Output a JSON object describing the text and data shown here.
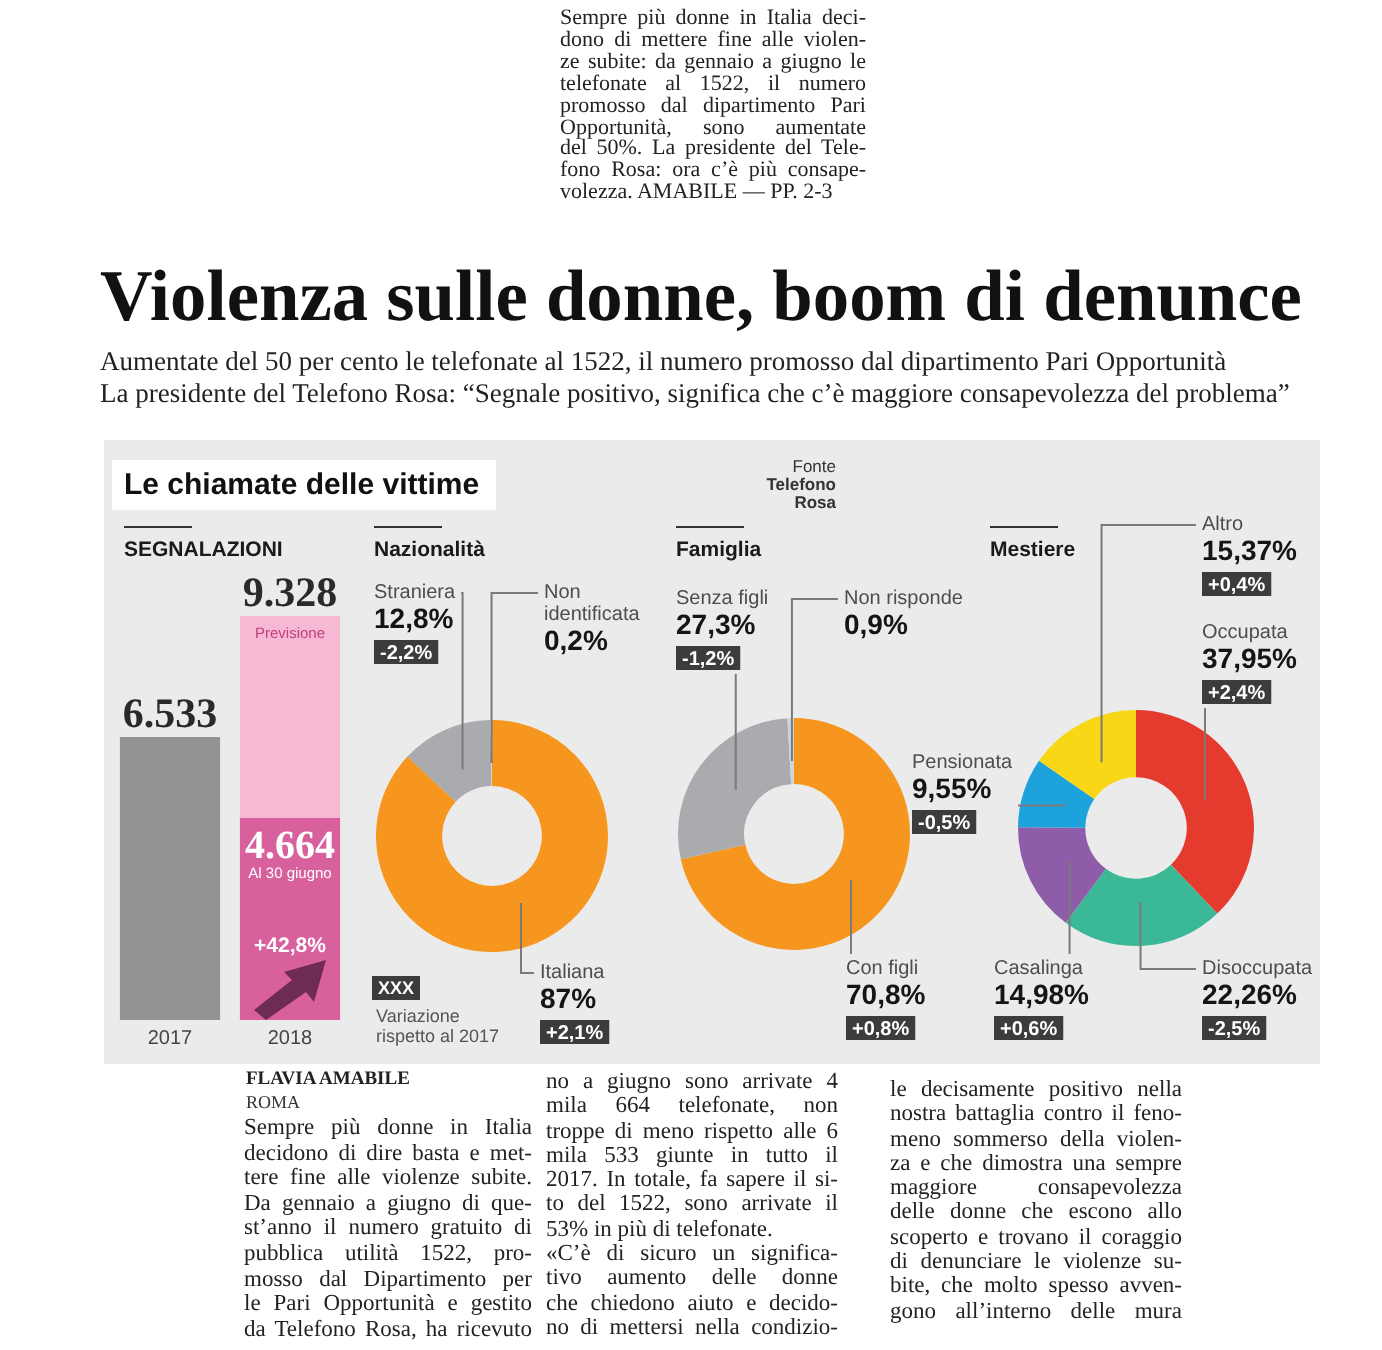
{
  "chart_data": [
    {
      "type": "other",
      "title": "Violenza sulle donne, boom di denunce",
      "subtitle": "Aumentate del 50 per cento le telefonate al 1522, il numero promosso dal dipartimento Pari Opportunità\nLa presidente del Telefono Rosa: “Segnale positivo, significa che c’è maggiore consapevolezza del problema”",
      "annotations": [
        "Sempre più donne in Italia deci-\ndono di mettere fine alle violen-\nze subite: da gennaio a giugno le\ntelefonate al 1522, il numero\npromosso dal dipartimento Pari\nOpportunità, sono aumentate\ndel 50%. La presidente del Tele-\nfono Rosa: ora c’è più consape-\nvolezza. AMABILE — PP. 2-3"
      ]
    },
    {
      "type": "other",
      "title": "Le chiamate delle vittime",
      "annotations": [
        "Fonte\nTelefono\nRosa",
        "XXX",
        "Variazione\nrispetto al 2017"
      ]
    },
    {
      "type": "bar",
      "title": "SEGNALAZIONI",
      "categories": [
        "2017",
        "2018"
      ],
      "stacked": true,
      "tick_labels": "x",
      "series": [
        {
          "color": "#939393",
          "values": [
            6533,
            null
          ]
        },
        {
          "name": "Al 30 giugno",
          "color": "#d8609c",
          "values": [
            null,
            4664
          ],
          "value_labels": [
            null,
            "4.664"
          ]
        },
        {
          "name": "Previsione",
          "color": "#f6b8d3",
          "values": [
            null,
            4664
          ]
        }
      ],
      "totals": [
        "6.533",
        "9.328"
      ],
      "annotations": [
        "+42,8%"
      ]
    },
    {
      "type": "donut",
      "title": "Nazionalità",
      "categories": [
        "Italiana",
        "Straniera",
        "Non identificata"
      ],
      "values": [
        87,
        12.8,
        0.2
      ],
      "colors": [
        "#f6961e",
        "#a9abae",
        "#d2d4d5"
      ],
      "value_labels": [
        "87%",
        "12,8%",
        "0,2%"
      ],
      "annotations": [
        "+2,1%",
        "-2,2%"
      ]
    },
    {
      "type": "donut",
      "title": "Famiglia",
      "categories": [
        "Con figli",
        "Senza figli",
        "Non risponde"
      ],
      "values": [
        70.8,
        27.3,
        0.9
      ],
      "colors": [
        "#f6961e",
        "#a9abae",
        "#d2d4d5"
      ],
      "value_labels": [
        "70,8%",
        "27,3%",
        "0,9%"
      ],
      "annotations": [
        "+0,8%",
        "-1,2%"
      ]
    },
    {
      "type": "donut",
      "title": "Mestiere",
      "categories": [
        "Occupata",
        "Disoccupata",
        "Casalinga",
        "Pensionata",
        "Altro"
      ],
      "values": [
        37.95,
        22.26,
        14.98,
        9.55,
        15.37
      ],
      "colors": [
        "#e53b2f",
        "#3bb895",
        "#8e5ca9",
        "#1ea2dc",
        "#f8d716"
      ],
      "value_labels": [
        "37,95%",
        "22,26%",
        "14,98%",
        "9,55%",
        "15,37%"
      ],
      "annotations": [
        "+2,4%",
        "-2,5%",
        "+0,6%",
        "-0,5%",
        "+0,4%"
      ]
    },
    {
      "type": "other",
      "annotations": [
        "FLAVIA AMABILE",
        "ROMA",
        "Sempre più donne in Italia\ndecidono di dire basta e met-\ntere fine alle violenze subite.\nDa gennaio a giugno di que-\nst’anno il numero gratuito di\npubblica utilità 1522, pro-\nmosso dal Dipartimento per\nle Pari Opportunità e gestito\nda Telefono Rosa, ha ricevuto",
        "no a giugno sono arrivate 4\nmila 664 telefonate, non\ntroppe di meno rispetto alle 6\nmila 533 giunte in tutto il\n2017. In totale, fa sapere il si-\nto del 1522, sono arrivate il\n53% in più di telefonate.\n«C’è di sicuro un significa-\ntivo aumento delle donne\nche chiedono aiuto e decido-\nno di mettersi nella condizio-",
        "le decisamente positivo nella\nnostra battaglia contro il feno-\nmeno sommerso della violen-\nza e che dimostra una sempre\nmaggiore consapevolezza\ndelle donne che escono allo\nscoperto e trovano il coraggio\ndi denunciare le violenze su-\nbite, che molto spesso avven-\ngono all’interno delle mura"
      ]
    }
  ]
}
